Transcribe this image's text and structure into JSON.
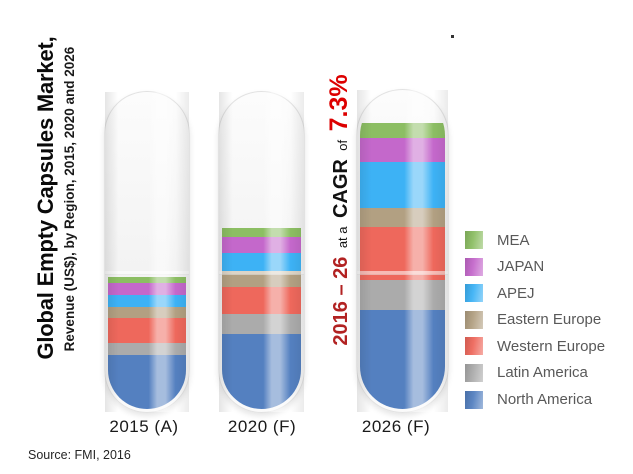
{
  "title": "Global Empty Capsules Market,",
  "subtitle": "Revenue (US$), by Region, 2015, 2020 and 2026",
  "source": "Source: FMI, 2016",
  "annotation": {
    "range": "2016 – 26",
    "sep1": "at a",
    "cagr": "CAGR",
    "sep2": "of",
    "value": "7.3%",
    "range_color": "#B22222",
    "value_color": "#DD0000"
  },
  "chart_data": {
    "type": "bar",
    "subtype": "stacked-capsule-pictogram",
    "title": "Global Empty Capsules Market, Revenue (US$), by Region, 2015, 2020 and 2026",
    "categories": [
      "2015 (A)",
      "2020 (F)",
      "2026 (F)"
    ],
    "value_unit": "relative stacked-segment height in pixels (no numeric axis shown in figure)",
    "stacking_order": "top-to-bottom: MEA, JAPAN, APEJ, Eastern Europe, Western Europe, Latin America, North America",
    "legend_position": "right",
    "series": [
      {
        "name": "MEA",
        "color": "#8CBE63",
        "values": [
          6,
          9,
          15
        ]
      },
      {
        "name": "JAPAN",
        "color": "#C468CB",
        "values": [
          12,
          16,
          24
        ]
      },
      {
        "name": "APEJ",
        "color": "#3DB2F5",
        "values": [
          12,
          18,
          46
        ]
      },
      {
        "name": "Eastern Europe",
        "color": "#B2A082",
        "values": [
          11,
          16,
          19
        ]
      },
      {
        "name": "Western Europe",
        "color": "#EE685C",
        "values": [
          25,
          27,
          53
        ]
      },
      {
        "name": "Latin America",
        "color": "#ABABAB",
        "values": [
          12,
          20,
          30
        ]
      },
      {
        "name": "North America",
        "color": "#5480C0",
        "values": [
          54,
          75,
          99
        ]
      }
    ],
    "annotation_text": "2016 – 26 at a CAGR of 7.3%"
  }
}
